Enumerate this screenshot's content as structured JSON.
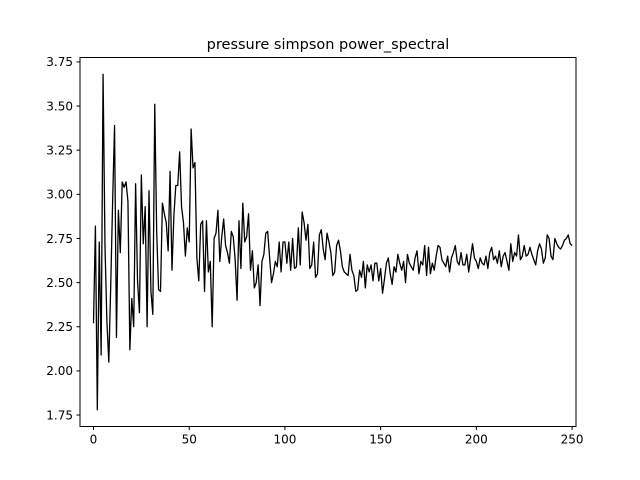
{
  "chart_data": {
    "type": "line",
    "title": "pressure simpson power_spectral",
    "xlabel": "",
    "ylabel": "",
    "xlim": [
      -7.05,
      252.05
    ],
    "ylim": [
      1.685,
      3.775
    ],
    "grid": false,
    "line_color": "#000000",
    "xticks": [
      0,
      50,
      100,
      150,
      200,
      250
    ],
    "xtick_labels": [
      "0",
      "50",
      "100",
      "150",
      "200",
      "250"
    ],
    "yticks": [
      1.75,
      2.0,
      2.25,
      2.5,
      2.75,
      3.0,
      3.25,
      3.5,
      3.75
    ],
    "ytick_labels": [
      "1.75",
      "2.00",
      "2.25",
      "2.50",
      "2.75",
      "3.00",
      "3.25",
      "3.50",
      "3.75"
    ],
    "series": [
      {
        "values": [
          2.27,
          2.82,
          1.78,
          2.73,
          2.09,
          3.68,
          2.71,
          2.28,
          2.05,
          2.48,
          2.96,
          3.39,
          2.19,
          2.91,
          2.67,
          3.07,
          3.04,
          3.07,
          2.96,
          2.12,
          2.41,
          2.25,
          3.06,
          2.51,
          2.33,
          3.11,
          2.72,
          2.93,
          2.25,
          3.02,
          2.45,
          2.32,
          3.51,
          2.79,
          2.46,
          2.45,
          2.95,
          2.89,
          2.84,
          2.68,
          3.13,
          2.57,
          2.88,
          3.05,
          3.05,
          3.24,
          2.93,
          2.84,
          2.65,
          2.81,
          2.73,
          3.37,
          3.15,
          3.18,
          2.64,
          2.51,
          2.83,
          2.85,
          2.45,
          2.85,
          2.56,
          2.62,
          2.25,
          2.75,
          2.78,
          2.91,
          2.62,
          2.76,
          2.86,
          2.71,
          2.67,
          2.61,
          2.79,
          2.76,
          2.63,
          2.4,
          2.85,
          2.58,
          2.95,
          2.73,
          2.76,
          2.89,
          2.57,
          2.68,
          2.47,
          2.5,
          2.6,
          2.37,
          2.62,
          2.66,
          2.78,
          2.79,
          2.64,
          2.5,
          2.55,
          2.62,
          2.59,
          2.73,
          2.56,
          2.73,
          2.73,
          2.61,
          2.73,
          2.57,
          2.75,
          2.58,
          2.59,
          2.81,
          2.6,
          2.9,
          2.84,
          2.74,
          2.83,
          2.58,
          2.6,
          2.73,
          2.53,
          2.55,
          2.77,
          2.8,
          2.69,
          2.63,
          2.78,
          2.73,
          2.67,
          2.54,
          2.56,
          2.71,
          2.74,
          2.68,
          2.59,
          2.56,
          2.55,
          2.54,
          2.66,
          2.57,
          2.54,
          2.45,
          2.46,
          2.57,
          2.53,
          2.62,
          2.47,
          2.6,
          2.56,
          2.6,
          2.51,
          2.61,
          2.61,
          2.51,
          2.58,
          2.44,
          2.52,
          2.61,
          2.64,
          2.55,
          2.49,
          2.59,
          2.56,
          2.66,
          2.61,
          2.57,
          2.62,
          2.5,
          2.66,
          2.61,
          2.59,
          2.57,
          2.64,
          2.68,
          2.55,
          2.62,
          2.6,
          2.71,
          2.54,
          2.7,
          2.55,
          2.61,
          2.57,
          2.65,
          2.71,
          2.7,
          2.63,
          2.61,
          2.59,
          2.65,
          2.56,
          2.64,
          2.67,
          2.71,
          2.62,
          2.6,
          2.67,
          2.6,
          2.6,
          2.66,
          2.56,
          2.64,
          2.72,
          2.64,
          2.62,
          2.58,
          2.64,
          2.61,
          2.6,
          2.65,
          2.58,
          2.67,
          2.7,
          2.63,
          2.65,
          2.61,
          2.68,
          2.59,
          2.65,
          2.67,
          2.62,
          2.57,
          2.72,
          2.62,
          2.67,
          2.65,
          2.77,
          2.63,
          2.65,
          2.71,
          2.65,
          2.66,
          2.7,
          2.66,
          2.63,
          2.6,
          2.68,
          2.72,
          2.69,
          2.61,
          2.64,
          2.77,
          2.75,
          2.65,
          2.63,
          2.75,
          2.72,
          2.7,
          2.69,
          2.71,
          2.74,
          2.75,
          2.77,
          2.72,
          2.71
        ]
      }
    ]
  }
}
